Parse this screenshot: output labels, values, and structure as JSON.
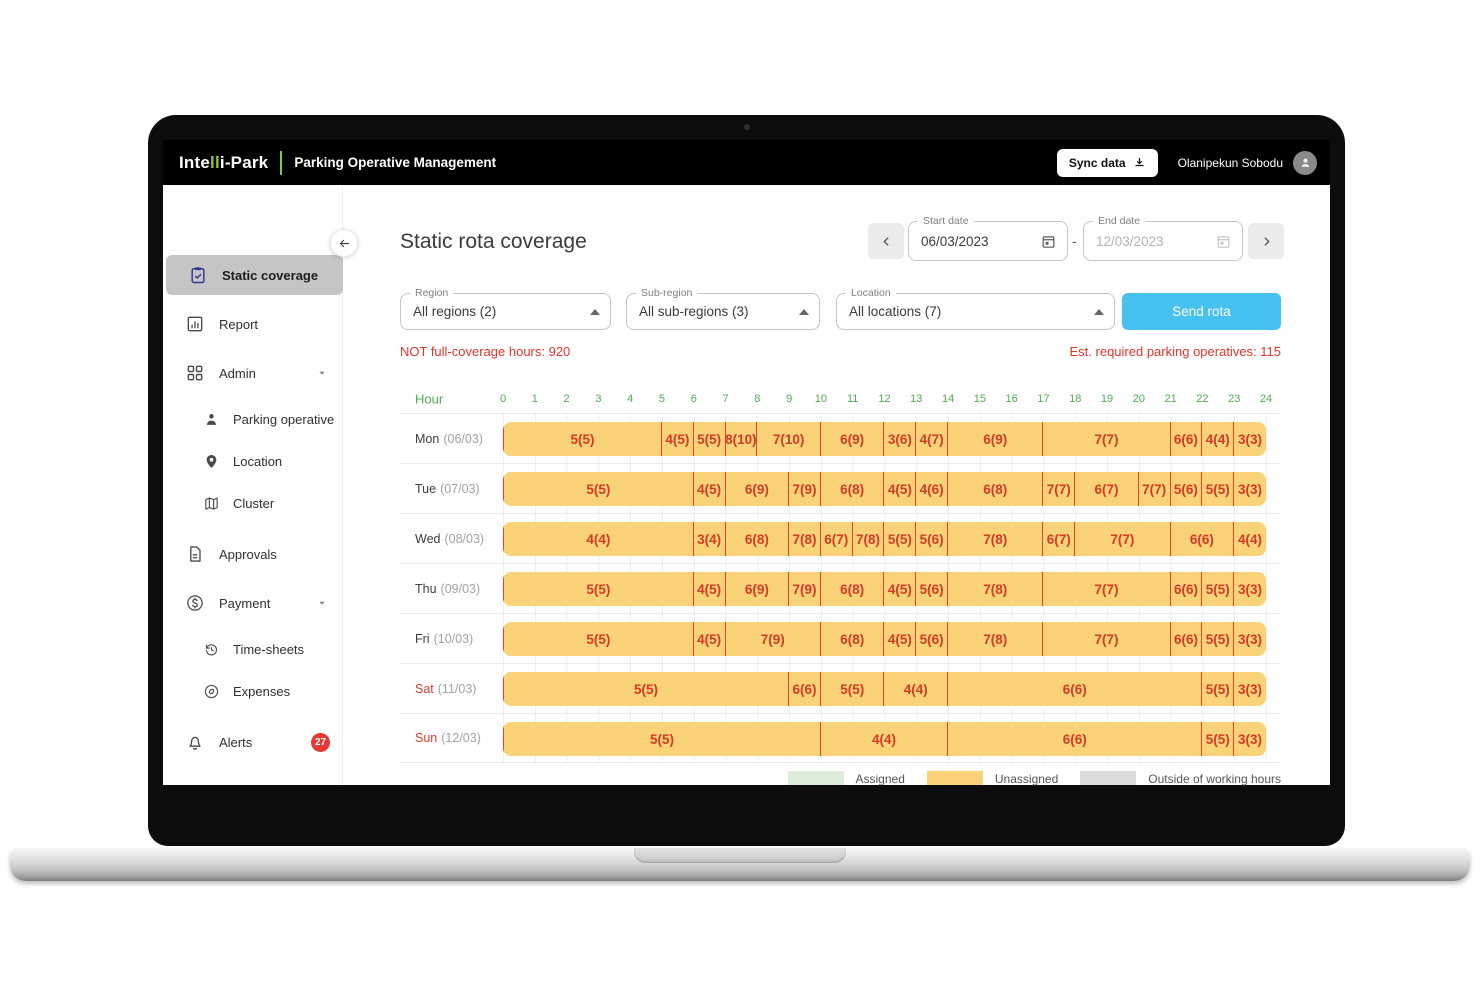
{
  "colors": {
    "brand_accent_green": "#8DC63F",
    "active_item_bg": "#C5C5C5",
    "active_icon_navy": "#2B3990",
    "hour_axis_green": "#4CAF50",
    "bar_fill_yellow": "#FAD379",
    "bar_divider_red": "#E8442D",
    "cell_text_red": "#D63A26",
    "alert_red": "#E53935",
    "send_button_blue": "#47C1EF",
    "stat_text_red": "#E0352B",
    "weekend_red": "#E0392E"
  },
  "header": {
    "logo": {
      "prefix": "Inte",
      "accent": "ll",
      "suffix": "i-Park"
    },
    "app_title": "Parking Operative Management",
    "sync_button": "Sync data",
    "user_name": "Olanipekun Sobodu"
  },
  "sidebar": {
    "items": [
      {
        "label": "Static coverage",
        "icon": "clipboard-check-icon",
        "active": true
      },
      {
        "label": "Report",
        "icon": "bar-chart-icon"
      },
      {
        "label": "Admin",
        "icon": "grid-icon",
        "caret": true
      },
      {
        "label": "Parking operative",
        "icon": "person-icon",
        "sub": true
      },
      {
        "label": "Location",
        "icon": "location-pin-icon",
        "sub": true
      },
      {
        "label": "Cluster",
        "icon": "map-icon",
        "sub": true
      },
      {
        "label": "Approvals",
        "icon": "document-check-icon"
      },
      {
        "label": "Payment",
        "icon": "dollar-circle-icon",
        "caret": true
      },
      {
        "label": "Time-sheets",
        "icon": "history-clock-icon",
        "sub": true
      },
      {
        "label": "Expenses",
        "icon": "expenses-coin-icon",
        "sub": true
      },
      {
        "label": "Alerts",
        "icon": "bell-icon",
        "badge": "27"
      }
    ]
  },
  "main": {
    "page_title": "Static rota coverage",
    "date_range": {
      "start_label": "Start date",
      "start_value": "06/03/2023",
      "separator": "-",
      "end_label": "End date",
      "end_value": "12/03/2023"
    },
    "filters": [
      {
        "label": "Region",
        "value": "All regions (2)"
      },
      {
        "label": "Sub-region",
        "value": "All sub-regions (3)"
      },
      {
        "label": "Location",
        "value": "All locations (7)"
      }
    ],
    "send_button": "Send rota",
    "stats": {
      "left": "NOT full-coverage hours: 920",
      "right": "Est. required parking operatives: 115"
    }
  },
  "rota": {
    "hour_axis_label": "Hour",
    "hour_ticks": [
      0,
      1,
      2,
      3,
      4,
      5,
      6,
      7,
      8,
      9,
      10,
      11,
      12,
      13,
      14,
      15,
      16,
      17,
      18,
      19,
      20,
      21,
      22,
      23,
      24
    ],
    "rows": [
      {
        "day": "Mon",
        "date": "(06/03)",
        "weekend": false,
        "segments": [
          {
            "from": 0,
            "to": 5,
            "label": "5(5)"
          },
          {
            "from": 5,
            "to": 6,
            "label": "4(5)"
          },
          {
            "from": 6,
            "to": 7,
            "label": "5(5)"
          },
          {
            "from": 7,
            "to": 8,
            "label": "8(10)"
          },
          {
            "from": 8,
            "to": 10,
            "label": "7(10)"
          },
          {
            "from": 10,
            "to": 12,
            "label": "6(9)"
          },
          {
            "from": 12,
            "to": 13,
            "label": "3(6)"
          },
          {
            "from": 13,
            "to": 14,
            "label": "4(7)"
          },
          {
            "from": 14,
            "to": 17,
            "label": "6(9)"
          },
          {
            "from": 17,
            "to": 21,
            "label": "7(7)"
          },
          {
            "from": 21,
            "to": 22,
            "label": "6(6)"
          },
          {
            "from": 22,
            "to": 23,
            "label": "4(4)"
          },
          {
            "from": 23,
            "to": 24,
            "label": "3(3)"
          }
        ]
      },
      {
        "day": "Tue",
        "date": "(07/03)",
        "weekend": false,
        "segments": [
          {
            "from": 0,
            "to": 6,
            "label": "5(5)"
          },
          {
            "from": 6,
            "to": 7,
            "label": "4(5)"
          },
          {
            "from": 7,
            "to": 9,
            "label": "6(9)"
          },
          {
            "from": 9,
            "to": 10,
            "label": "7(9)"
          },
          {
            "from": 10,
            "to": 12,
            "label": "6(8)"
          },
          {
            "from": 12,
            "to": 13,
            "label": "4(5)"
          },
          {
            "from": 13,
            "to": 14,
            "label": "4(6)"
          },
          {
            "from": 14,
            "to": 17,
            "label": "6(8)"
          },
          {
            "from": 17,
            "to": 18,
            "label": "7(7)"
          },
          {
            "from": 18,
            "to": 20,
            "label": "6(7)"
          },
          {
            "from": 20,
            "to": 21,
            "label": "7(7)"
          },
          {
            "from": 21,
            "to": 22,
            "label": "5(6)"
          },
          {
            "from": 22,
            "to": 23,
            "label": "5(5)"
          },
          {
            "from": 23,
            "to": 24,
            "label": "3(3)"
          }
        ]
      },
      {
        "day": "Wed",
        "date": "(08/03)",
        "weekend": false,
        "segments": [
          {
            "from": 0,
            "to": 6,
            "label": "4(4)"
          },
          {
            "from": 6,
            "to": 7,
            "label": "3(4)"
          },
          {
            "from": 7,
            "to": 9,
            "label": "6(8)"
          },
          {
            "from": 9,
            "to": 10,
            "label": "7(8)"
          },
          {
            "from": 10,
            "to": 11,
            "label": "6(7)"
          },
          {
            "from": 11,
            "to": 12,
            "label": "7(8)"
          },
          {
            "from": 12,
            "to": 13,
            "label": "5(5)"
          },
          {
            "from": 13,
            "to": 14,
            "label": "5(6)"
          },
          {
            "from": 14,
            "to": 17,
            "label": "7(8)"
          },
          {
            "from": 17,
            "to": 18,
            "label": "6(7)"
          },
          {
            "from": 18,
            "to": 21,
            "label": "7(7)"
          },
          {
            "from": 21,
            "to": 23,
            "label": "6(6)"
          },
          {
            "from": 23,
            "to": 24,
            "label": "4(4)"
          }
        ]
      },
      {
        "day": "Thu",
        "date": "(09/03)",
        "weekend": false,
        "segments": [
          {
            "from": 0,
            "to": 6,
            "label": "5(5)"
          },
          {
            "from": 6,
            "to": 7,
            "label": "4(5)"
          },
          {
            "from": 7,
            "to": 9,
            "label": "6(9)"
          },
          {
            "from": 9,
            "to": 10,
            "label": "7(9)"
          },
          {
            "from": 10,
            "to": 12,
            "label": "6(8)"
          },
          {
            "from": 12,
            "to": 13,
            "label": "4(5)"
          },
          {
            "from": 13,
            "to": 14,
            "label": "5(6)"
          },
          {
            "from": 14,
            "to": 17,
            "label": "7(8)"
          },
          {
            "from": 17,
            "to": 21,
            "label": "7(7)"
          },
          {
            "from": 21,
            "to": 22,
            "label": "6(6)"
          },
          {
            "from": 22,
            "to": 23,
            "label": "5(5)"
          },
          {
            "from": 23,
            "to": 24,
            "label": "3(3)"
          }
        ]
      },
      {
        "day": "Fri",
        "date": "(10/03)",
        "weekend": false,
        "segments": [
          {
            "from": 0,
            "to": 6,
            "label": "5(5)"
          },
          {
            "from": 6,
            "to": 7,
            "label": "4(5)"
          },
          {
            "from": 7,
            "to": 10,
            "label": "7(9)"
          },
          {
            "from": 10,
            "to": 12,
            "label": "6(8)"
          },
          {
            "from": 12,
            "to": 13,
            "label": "4(5)"
          },
          {
            "from": 13,
            "to": 14,
            "label": "5(6)"
          },
          {
            "from": 14,
            "to": 17,
            "label": "7(8)"
          },
          {
            "from": 17,
            "to": 21,
            "label": "7(7)"
          },
          {
            "from": 21,
            "to": 22,
            "label": "6(6)"
          },
          {
            "from": 22,
            "to": 23,
            "label": "5(5)"
          },
          {
            "from": 23,
            "to": 24,
            "label": "3(3)"
          }
        ]
      },
      {
        "day": "Sat",
        "date": "(11/03)",
        "weekend": true,
        "segments": [
          {
            "from": 0,
            "to": 9,
            "label": "5(5)"
          },
          {
            "from": 9,
            "to": 10,
            "label": "6(6)"
          },
          {
            "from": 10,
            "to": 12,
            "label": "5(5)"
          },
          {
            "from": 12,
            "to": 14,
            "label": "4(4)"
          },
          {
            "from": 14,
            "to": 22,
            "label": "6(6)"
          },
          {
            "from": 22,
            "to": 23,
            "label": "5(5)"
          },
          {
            "from": 23,
            "to": 24,
            "label": "3(3)"
          }
        ]
      },
      {
        "day": "Sun",
        "date": "(12/03)",
        "weekend": true,
        "segments": [
          {
            "from": 0,
            "to": 10,
            "label": "5(5)"
          },
          {
            "from": 10,
            "to": 14,
            "label": "4(4)"
          },
          {
            "from": 14,
            "to": 22,
            "label": "6(6)"
          },
          {
            "from": 22,
            "to": 23,
            "label": "5(5)"
          },
          {
            "from": 23,
            "to": 24,
            "label": "3(3)"
          }
        ]
      }
    ],
    "legend": [
      {
        "label": "Assigned",
        "color": "#DCEDDC"
      },
      {
        "label": "Unassigned",
        "color": "#FAD379"
      },
      {
        "label": "Outside of working hours",
        "color": "#DBDBDB"
      }
    ]
  }
}
